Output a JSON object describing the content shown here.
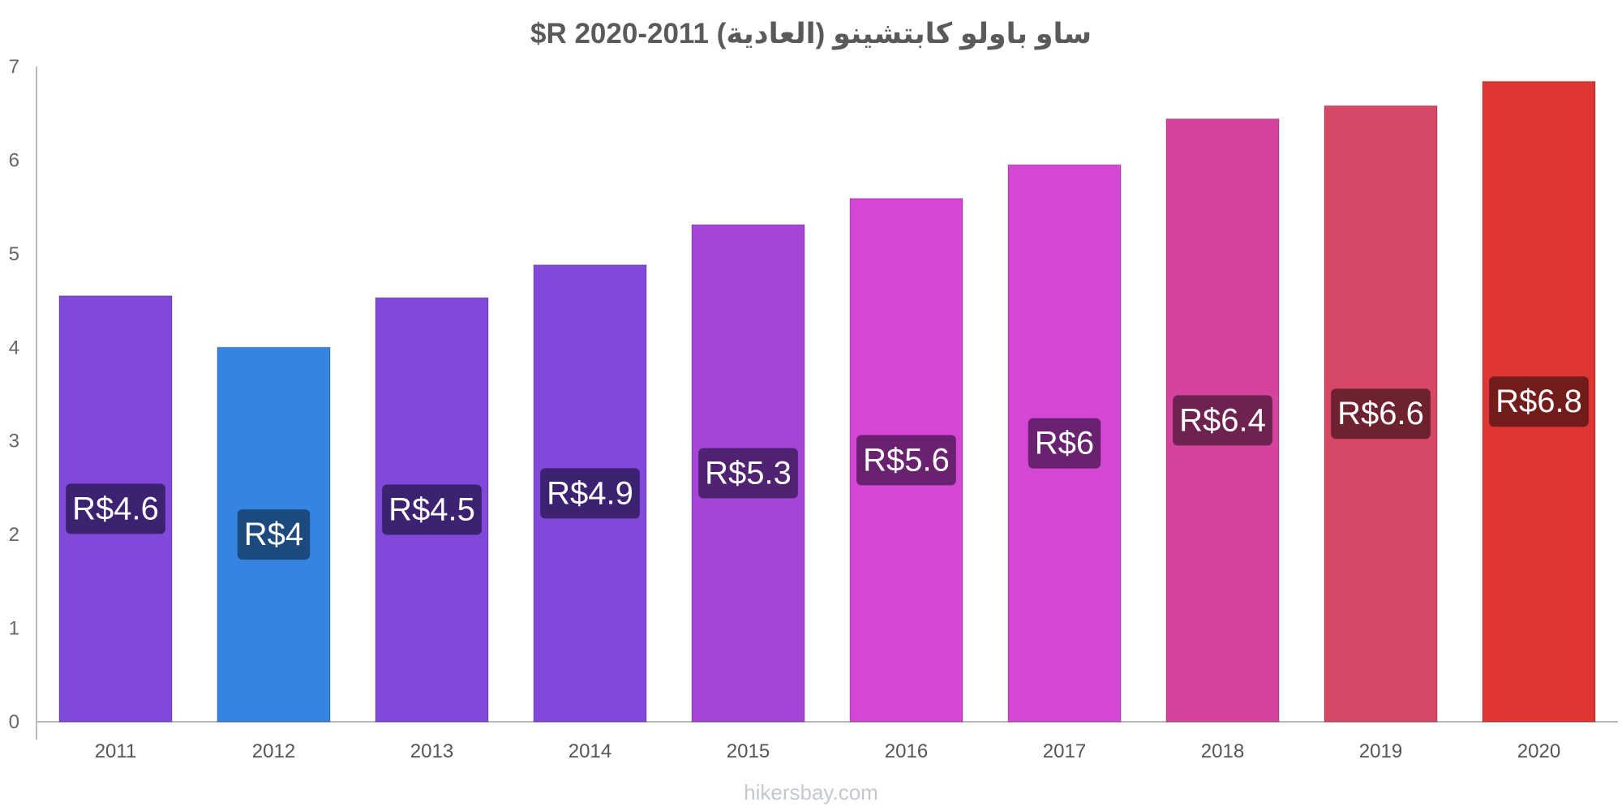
{
  "chart_data": {
    "type": "bar",
    "title": "ساو باولو كابتشينو (العادية) 2011-2020 R$",
    "categories": [
      "2011",
      "2012",
      "2013",
      "2014",
      "2015",
      "2016",
      "2017",
      "2018",
      "2019",
      "2020"
    ],
    "values": [
      4.55,
      4.0,
      4.53,
      4.88,
      5.31,
      5.59,
      5.95,
      6.44,
      6.58,
      6.84
    ],
    "value_labels": [
      "R$4.6",
      "R$4",
      "R$4.5",
      "R$4.9",
      "R$5.3",
      "R$5.6",
      "R$6",
      "R$6.4",
      "R$6.6",
      "R$6.8"
    ],
    "bar_colors": [
      "#8149da",
      "#3584e1",
      "#8149da",
      "#8149da",
      "#a645d8",
      "#d446d4",
      "#d446d4",
      "#d6439f",
      "#d64866",
      "#e03535"
    ],
    "label_bg_colors": [
      "#3e2272",
      "#1c4a7e",
      "#3e2272",
      "#3e2272",
      "#4f2272",
      "#6a2270",
      "#6a2270",
      "#6e224f",
      "#6e2230",
      "#721c1c"
    ],
    "ylim": [
      0,
      7
    ],
    "yticks": [
      0,
      1,
      2,
      3,
      4,
      5,
      6,
      7
    ],
    "xlabel": "",
    "ylabel": "",
    "grid": false,
    "legend": "none"
  },
  "footer": {
    "source": "hikersbay.com"
  }
}
